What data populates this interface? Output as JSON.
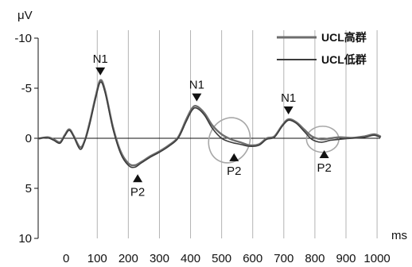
{
  "chart_data": {
    "type": "line",
    "ylabel": "μV",
    "xlabel": "ms",
    "ylim": [
      -10,
      10
    ],
    "y_inverted": true,
    "xlim": [
      -90,
      1010
    ],
    "x_ticks": [
      0,
      100,
      200,
      300,
      400,
      500,
      600,
      700,
      800,
      900,
      1000
    ],
    "y_ticks": [
      -10,
      -5,
      0,
      5,
      10
    ],
    "vertical_gridlines": true,
    "zero_line": true,
    "legend_position": "top-right",
    "series": [
      {
        "name": "UCL高群",
        "color": "#6e6e6e",
        "points": [
          [
            -90,
            0.05
          ],
          [
            -60,
            -0.1
          ],
          [
            -40,
            0.1
          ],
          [
            -20,
            0.4
          ],
          [
            -5,
            -0.3
          ],
          [
            10,
            -0.9
          ],
          [
            25,
            -0.2
          ],
          [
            45,
            0.9
          ],
          [
            60,
            0.2
          ],
          [
            75,
            -1.5
          ],
          [
            95,
            -4.2
          ],
          [
            110,
            -5.8
          ],
          [
            125,
            -4.8
          ],
          [
            150,
            -1.2
          ],
          [
            175,
            1.3
          ],
          [
            200,
            2.5
          ],
          [
            220,
            2.7
          ],
          [
            240,
            2.4
          ],
          [
            270,
            1.8
          ],
          [
            300,
            1.3
          ],
          [
            330,
            0.7
          ],
          [
            360,
            -0.1
          ],
          [
            385,
            -1.8
          ],
          [
            405,
            -3.0
          ],
          [
            420,
            -3.2
          ],
          [
            445,
            -2.5
          ],
          [
            470,
            -1.3
          ],
          [
            500,
            -0.4
          ],
          [
            530,
            0.1
          ],
          [
            560,
            0.4
          ],
          [
            590,
            0.7
          ],
          [
            620,
            0.6
          ],
          [
            645,
            0.0
          ],
          [
            670,
            -0.2
          ],
          [
            695,
            -1.3
          ],
          [
            715,
            -1.9
          ],
          [
            740,
            -1.6
          ],
          [
            765,
            -0.9
          ],
          [
            790,
            -0.2
          ],
          [
            820,
            0.1
          ],
          [
            850,
            0.0
          ],
          [
            880,
            -0.1
          ],
          [
            920,
            -0.05
          ],
          [
            960,
            -0.2
          ],
          [
            990,
            -0.4
          ],
          [
            1010,
            -0.2
          ]
        ]
      },
      {
        "name": "UCL低群",
        "color": "#3c3c3c",
        "points": [
          [
            -90,
            0.0
          ],
          [
            -60,
            -0.05
          ],
          [
            -40,
            0.2
          ],
          [
            -20,
            0.5
          ],
          [
            -5,
            -0.2
          ],
          [
            10,
            -0.8
          ],
          [
            25,
            -0.1
          ],
          [
            45,
            1.1
          ],
          [
            60,
            0.3
          ],
          [
            75,
            -1.3
          ],
          [
            95,
            -4.0
          ],
          [
            110,
            -5.6
          ],
          [
            125,
            -4.6
          ],
          [
            150,
            -1.0
          ],
          [
            175,
            1.5
          ],
          [
            200,
            2.7
          ],
          [
            220,
            2.9
          ],
          [
            240,
            2.5
          ],
          [
            270,
            1.9
          ],
          [
            300,
            1.4
          ],
          [
            330,
            0.8
          ],
          [
            360,
            0.0
          ],
          [
            385,
            -1.6
          ],
          [
            405,
            -2.8
          ],
          [
            420,
            -3.0
          ],
          [
            445,
            -2.3
          ],
          [
            470,
            -1.0
          ],
          [
            500,
            0.0
          ],
          [
            530,
            0.4
          ],
          [
            560,
            0.6
          ],
          [
            590,
            0.8
          ],
          [
            620,
            0.7
          ],
          [
            645,
            0.1
          ],
          [
            670,
            -0.1
          ],
          [
            695,
            -1.2
          ],
          [
            715,
            -1.8
          ],
          [
            740,
            -1.5
          ],
          [
            765,
            -0.7
          ],
          [
            790,
            0.1
          ],
          [
            820,
            0.4
          ],
          [
            850,
            0.2
          ],
          [
            880,
            0.1
          ],
          [
            920,
            0.0
          ],
          [
            960,
            -0.1
          ],
          [
            990,
            -0.3
          ],
          [
            1010,
            -0.1
          ]
        ]
      }
    ],
    "peak_annotations": [
      {
        "label": "N1",
        "x": 110,
        "y": -5.8,
        "marker": "down",
        "position": "above"
      },
      {
        "label": "P2",
        "x": 230,
        "y": 2.8,
        "marker": "up",
        "position": "below"
      },
      {
        "label": "N1",
        "x": 420,
        "y": -3.2,
        "marker": "down",
        "position": "above"
      },
      {
        "label": "P2",
        "x": 540,
        "y": 0.7,
        "marker": "up",
        "position": "below"
      },
      {
        "label": "N1",
        "x": 715,
        "y": -1.9,
        "marker": "down",
        "position": "above"
      },
      {
        "label": "P2",
        "x": 830,
        "y": 0.4,
        "marker": "up",
        "position": "below"
      }
    ],
    "highlight_ellipses": [
      {
        "cx": 525,
        "cy": 0.2,
        "rx": 65,
        "ry": 2.3,
        "angle": 25
      },
      {
        "cx": 825,
        "cy": 0.1,
        "rx": 52,
        "ry": 1.3,
        "angle": 0
      }
    ]
  }
}
